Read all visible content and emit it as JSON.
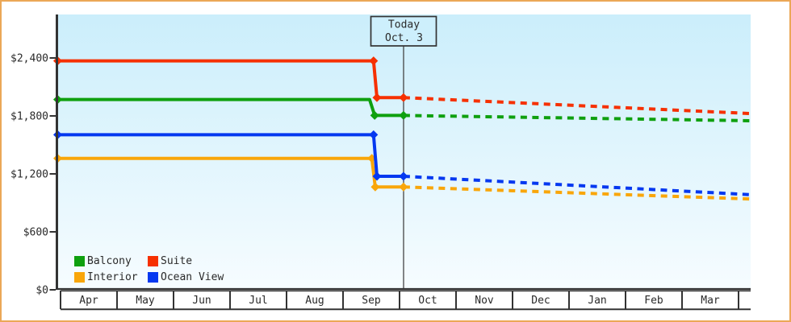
{
  "frame": {
    "border_color": "#eba757",
    "background": "#ffffff"
  },
  "chart_data": {
    "type": "line",
    "description": "Cabin price history (solid) and forecast (dashed) by month",
    "y_axis": {
      "ticks": [
        {
          "label": "$2,400",
          "value": 2400
        },
        {
          "label": "$1,800",
          "value": 1800
        },
        {
          "label": "$1,200",
          "value": 1200
        },
        {
          "label": "$600",
          "value": 600
        },
        {
          "label": "$0",
          "value": 0
        }
      ],
      "ylim": [
        0,
        2850
      ]
    },
    "x_axis": {
      "months": [
        "Apr",
        "May",
        "Jun",
        "Jul",
        "Aug",
        "Sep",
        "Oct",
        "Nov",
        "Dec",
        "Jan",
        "Feb",
        "Mar"
      ]
    },
    "today": {
      "label": "Today",
      "date": "Oct. 3",
      "month_position": 6.07
    },
    "plot": {
      "bg_top": "#cbeefb",
      "bg_bottom": "#f6fcff",
      "axis_color": "#333333",
      "text_color": "#2a2a2a",
      "today_box_fill": "#cdeffc"
    },
    "series": [
      {
        "name": "Interior",
        "color": "#f9a60a",
        "solid": [
          [
            -0.05,
            1360
          ],
          [
            5.51,
            1360
          ],
          [
            5.57,
            1065
          ],
          [
            6.07,
            1065
          ]
        ],
        "forecast": [
          [
            6.07,
            1065
          ],
          [
            12.2,
            940
          ]
        ],
        "markers": [
          [
            -0.05,
            1360
          ],
          [
            5.51,
            1360
          ],
          [
            5.57,
            1065
          ],
          [
            6.07,
            1065
          ]
        ]
      },
      {
        "name": "Ocean View",
        "color": "#0538f0",
        "solid": [
          [
            -0.05,
            1605
          ],
          [
            5.54,
            1605
          ],
          [
            5.6,
            1175
          ],
          [
            6.07,
            1175
          ]
        ],
        "forecast": [
          [
            6.07,
            1175
          ],
          [
            12.2,
            985
          ]
        ],
        "markers": [
          [
            -0.05,
            1605
          ],
          [
            5.54,
            1605
          ],
          [
            5.6,
            1175
          ],
          [
            6.07,
            1175
          ]
        ]
      },
      {
        "name": "Balcony",
        "color": "#0fa00f",
        "solid": [
          [
            -0.05,
            1970
          ],
          [
            5.47,
            1970
          ],
          [
            5.56,
            1805
          ],
          [
            6.07,
            1805
          ]
        ],
        "forecast": [
          [
            6.07,
            1805
          ],
          [
            12.2,
            1750
          ]
        ],
        "markers": [
          [
            -0.05,
            1970
          ],
          [
            5.56,
            1805
          ],
          [
            6.07,
            1805
          ]
        ]
      },
      {
        "name": "Suite",
        "color": "#f63000",
        "solid": [
          [
            -0.05,
            2370
          ],
          [
            5.54,
            2370
          ],
          [
            5.6,
            1990
          ],
          [
            6.07,
            1990
          ]
        ],
        "forecast": [
          [
            6.07,
            1990
          ],
          [
            12.2,
            1825
          ]
        ],
        "markers": [
          [
            -0.05,
            2370
          ],
          [
            5.54,
            2370
          ],
          [
            5.6,
            1990
          ],
          [
            6.07,
            1990
          ]
        ]
      }
    ],
    "legend": {
      "items": [
        {
          "label": "Balcony",
          "color": "#0fa00f"
        },
        {
          "label": "Suite",
          "color": "#f63000"
        },
        {
          "label": "Interior",
          "color": "#f9a60a"
        },
        {
          "label": "Ocean View",
          "color": "#0538f0"
        }
      ]
    }
  }
}
